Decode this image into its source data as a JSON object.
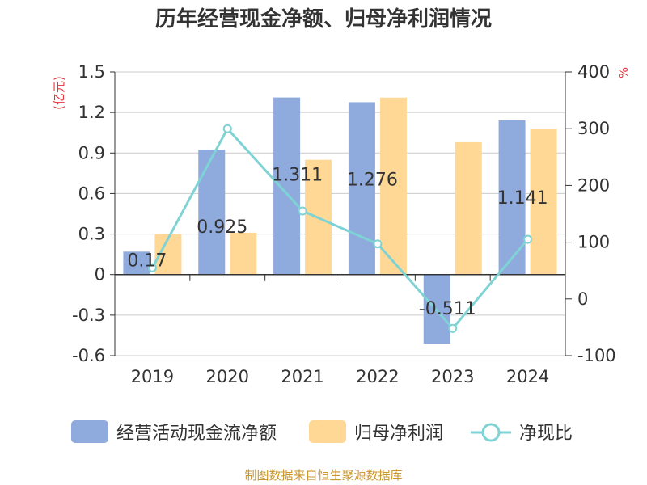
{
  "chart_data": {
    "type": "bar",
    "title": "历年经营现金净额、归母净利润情况",
    "categories": [
      "2019",
      "2020",
      "2021",
      "2022",
      "2023",
      "2024"
    ],
    "series": [
      {
        "name": "经营活动现金流净额",
        "type": "bar",
        "axis": "left",
        "color": "#8faadc",
        "values": [
          0.17,
          0.925,
          1.311,
          1.276,
          -0.511,
          1.141
        ],
        "data_labels": [
          "0.17",
          "0.925",
          "1.311",
          "1.276",
          "-0.511",
          "1.141"
        ]
      },
      {
        "name": "归母净利润",
        "type": "bar",
        "axis": "left",
        "color": "#ffd895",
        "values": [
          0.3,
          0.31,
          0.85,
          1.31,
          0.98,
          1.08
        ]
      },
      {
        "name": "净现比",
        "type": "line",
        "axis": "right",
        "color": "#7fd3d5",
        "values": [
          55,
          300,
          155,
          97,
          -52,
          105
        ]
      }
    ],
    "y_left": {
      "unit": "(亿元)",
      "min": -0.6,
      "max": 1.5,
      "ticks": [
        "1.5",
        "1.2",
        "0.9",
        "0.6",
        "0.3",
        "0",
        "-0.3",
        "-0.6"
      ]
    },
    "y_right": {
      "unit": "%",
      "min": -100,
      "max": 400,
      "ticks": [
        "400",
        "300",
        "200",
        "100",
        "0",
        "-100"
      ]
    },
    "grid": true,
    "legend_position": "bottom",
    "source": "制图数据来自恒生聚源数据库"
  }
}
